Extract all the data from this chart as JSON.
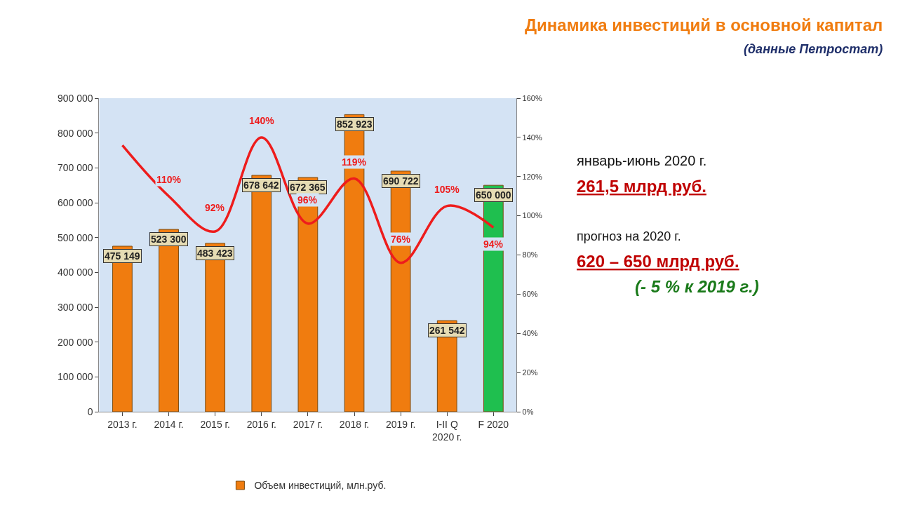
{
  "chart_data": {
    "type": "bar",
    "title": "Динамика инвестиций в основной капитал",
    "subtitle": "(данные Петростат)",
    "categories": [
      "2013 г.",
      "2014 г.",
      "2015 г.",
      "2016 г.",
      "2017 г.",
      "2018 г.",
      "2019 г.",
      "I-II Q\n2020 г.",
      "F 2020"
    ],
    "series": [
      {
        "name": "Объем инвестиций, млн.руб.",
        "colors": [
          "#f07c0f",
          "#f07c0f",
          "#f07c0f",
          "#f07c0f",
          "#f07c0f",
          "#f07c0f",
          "#f07c0f",
          "#f07c0f",
          "#1fbf4f"
        ],
        "values": [
          475149,
          523300,
          483423,
          678642,
          672365,
          852923,
          690722,
          261542,
          650000
        ],
        "value_labels": [
          "475 149",
          "523 300",
          "483 423",
          "678 642",
          "672 365",
          "852 923",
          "690 722",
          "261 542",
          "650 000"
        ]
      },
      {
        "type": "line",
        "axis": "y2",
        "color": "#ee1c1c",
        "values": [
          136,
          110,
          92,
          140,
          96,
          119,
          76,
          105,
          94
        ],
        "value_labels": [
          null,
          "110%",
          "92%",
          "140%",
          "96%",
          "119%",
          "76%",
          "105%",
          "94%"
        ]
      }
    ],
    "ylim": [
      0,
      900000
    ],
    "yticks": [
      {
        "value": 0,
        "label": "0"
      },
      {
        "value": 100000,
        "label": "100 000"
      },
      {
        "value": 200000,
        "label": "200 000"
      },
      {
        "value": 300000,
        "label": "300 000"
      },
      {
        "value": 400000,
        "label": "400 000"
      },
      {
        "value": 500000,
        "label": "500 000"
      },
      {
        "value": 600000,
        "label": "600 000"
      },
      {
        "value": 700000,
        "label": "700 000"
      },
      {
        "value": 800000,
        "label": "800 000"
      },
      {
        "value": 900000,
        "label": "900 000"
      }
    ],
    "y2lim": [
      0,
      160
    ],
    "y2ticks": [
      {
        "value": 0,
        "label": "0%"
      },
      {
        "value": 20,
        "label": "20%"
      },
      {
        "value": 40,
        "label": "40%"
      },
      {
        "value": 60,
        "label": "60%"
      },
      {
        "value": 80,
        "label": "80%"
      },
      {
        "value": 100,
        "label": "100%"
      },
      {
        "value": 120,
        "label": "120%"
      },
      {
        "value": 140,
        "label": "140%"
      },
      {
        "value": 160,
        "label": "160%"
      }
    ],
    "grid": false,
    "legend": "bottom",
    "marker": "none",
    "line_style": "solid",
    "annotations": [
      "январь-июнь 2020 г.",
      "261,5 млрд руб.",
      "прогноз на 2020 г.",
      "620 – 650 млрд руб.",
      "(- 5 % к 2019 г.)"
    ]
  }
}
